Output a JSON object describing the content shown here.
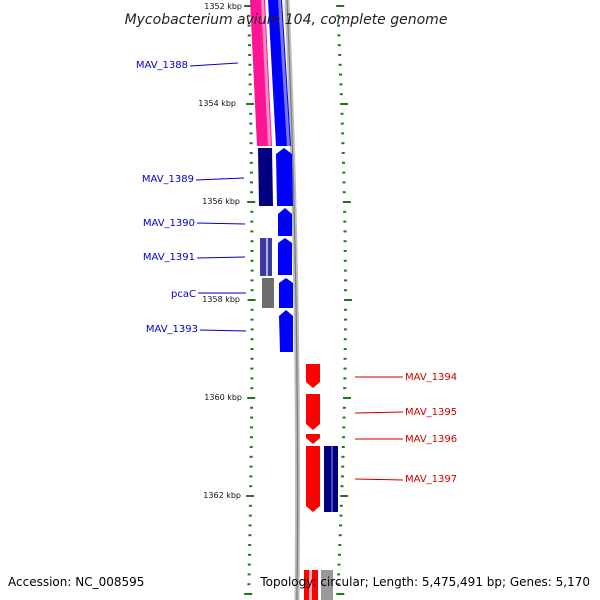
{
  "title": "Mycobacterium avium 104, complete genome",
  "footer": {
    "accession": "Accession: NC_008595",
    "summary": "Topology: circular; Length: 5,475,491 bp; Genes: 5,170"
  },
  "scale_labels": [
    "1352 kbp",
    "1354 kbp",
    "1356 kbp",
    "1358 kbp",
    "1360 kbp",
    "1362 kbp"
  ],
  "genes_left": [
    {
      "name": "MAV_1388"
    },
    {
      "name": "MAV_1389"
    },
    {
      "name": "MAV_1390"
    },
    {
      "name": "MAV_1391"
    },
    {
      "name": "pcaC"
    },
    {
      "name": "MAV_1393"
    }
  ],
  "genes_right": [
    {
      "name": "MAV_1394"
    },
    {
      "name": "MAV_1395"
    },
    {
      "name": "MAV_1396"
    },
    {
      "name": "MAV_1397"
    }
  ],
  "colors": {
    "forward_gene": "#0000ff",
    "reverse_gene": "#ff0000",
    "navy_gene": "#000080",
    "magenta_gene": "#ff1493",
    "gray_gene": "#6e6e6e",
    "left_label": "#0000cc",
    "right_label": "#cc0000",
    "tick": "#1a7a1a",
    "backbone": "#999999"
  }
}
